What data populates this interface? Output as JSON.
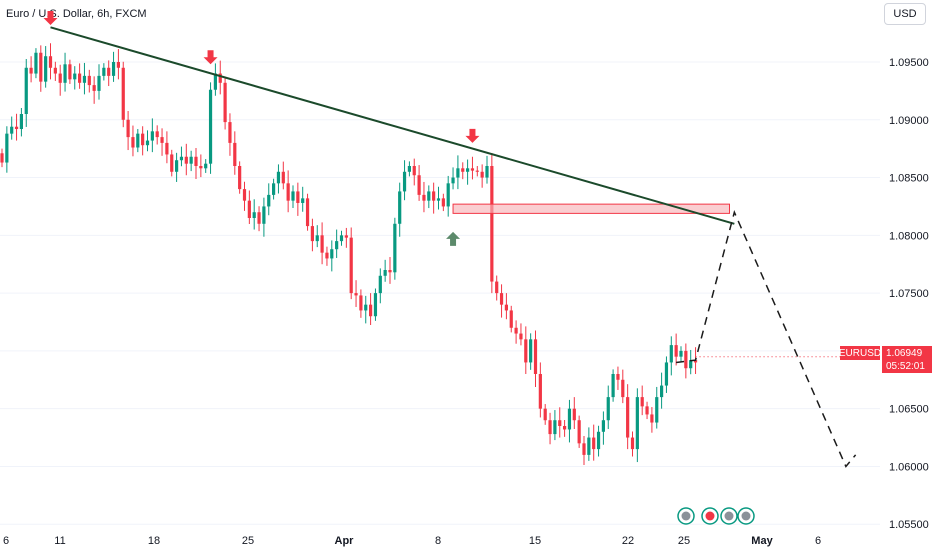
{
  "header": {
    "title": "Euro / U.S. Dollar, 6h, FXCM",
    "currency": "USD"
  },
  "price_tag": {
    "symbol": "EURUSD",
    "price": "1.06949",
    "countdown": "05:52:01"
  },
  "chart_data": {
    "type": "candlestick",
    "title": "Euro / U.S. Dollar, 6h, FXCM",
    "x_ticks": [
      "6",
      "11",
      "18",
      "25",
      "Apr",
      "8",
      "15",
      "22",
      "25",
      "May",
      "6"
    ],
    "y_ticks": [
      "1.09500",
      "1.09000",
      "1.08500",
      "1.08000",
      "1.07500",
      "1.07000",
      "1.06500",
      "1.06000",
      "1.05500"
    ],
    "last_price": 1.06949,
    "ylim": [
      1.0545,
      1.0995
    ],
    "colors": {
      "up": "#089981",
      "down": "#f23645",
      "trendline": "#1b4a2b",
      "zone_fill": "#f7b3b9",
      "zone_stroke": "#f23645",
      "arrow_down": "#f23645",
      "arrow_up": "#5c8a6b",
      "projection": "#1b1b1b"
    },
    "candle_closes": [
      1.0863,
      1.0888,
      1.0894,
      1.0892,
      1.0905,
      1.0945,
      1.094,
      1.0958,
      1.0933,
      1.0955,
      1.0945,
      1.094,
      1.0932,
      1.0948,
      1.0935,
      1.094,
      1.0932,
      1.0938,
      1.093,
      1.0925,
      1.0938,
      1.0945,
      1.0938,
      1.095,
      1.0945,
      1.09,
      1.0885,
      1.0876,
      1.0888,
      1.0878,
      1.0882,
      1.089,
      1.0885,
      1.088,
      1.087,
      1.0855,
      1.0865,
      1.0868,
      1.0862,
      1.0868,
      1.086,
      1.0858,
      1.0862,
      1.0926,
      1.094,
      1.0932,
      1.0898,
      1.088,
      1.086,
      1.084,
      1.083,
      1.0815,
      1.082,
      1.081,
      1.0825,
      1.0835,
      1.0845,
      1.0855,
      1.0845,
      1.083,
      1.0838,
      1.0828,
      1.0832,
      1.0808,
      1.0795,
      1.08,
      1.0785,
      1.078,
      1.0788,
      1.0795,
      1.08,
      1.0798,
      1.075,
      1.0748,
      1.0735,
      1.074,
      1.073,
      1.075,
      1.0765,
      1.077,
      1.0768,
      1.081,
      1.0838,
      1.0855,
      1.086,
      1.0852,
      1.0835,
      1.083,
      1.0838,
      1.083,
      1.0832,
      1.0825,
      1.0845,
      1.085,
      1.0858,
      1.0855,
      1.0858,
      1.0856,
      1.0855,
      1.085,
      1.086,
      1.076,
      1.075,
      1.074,
      1.0735,
      1.072,
      1.0715,
      1.071,
      1.069,
      1.071,
      1.068,
      1.065,
      1.064,
      1.0628,
      1.064,
      1.0635,
      1.0632,
      1.065,
      1.064,
      1.062,
      1.061,
      1.0625,
      1.0615,
      1.063,
      1.064,
      1.066,
      1.068,
      1.0675,
      1.066,
      1.0625,
      1.0615,
      1.066,
      1.0652,
      1.0645,
      1.0638,
      1.066,
      1.067,
      1.069,
      1.0705,
      1.0695,
      1.07,
      1.0685,
      1.0692,
      1.069
    ],
    "trendline": {
      "from": [
        10,
        1.098
      ],
      "to": [
        151,
        1.081
      ]
    },
    "zone": {
      "from_index": 93,
      "to_index": 150,
      "top": 1.0827,
      "bottom": 1.0819
    },
    "arrows": [
      {
        "index": 10,
        "price": 1.0982,
        "direction": "down"
      },
      {
        "index": 43,
        "price": 1.0948,
        "direction": "down"
      },
      {
        "index": 97,
        "price": 1.088,
        "direction": "down"
      },
      {
        "index": 93,
        "price": 1.0803,
        "direction": "up"
      }
    ],
    "projection": [
      [
        139,
        1.069
      ],
      [
        143,
        1.0692
      ],
      [
        151,
        1.082
      ],
      [
        174,
        1.06
      ],
      [
        176,
        1.061
      ]
    ]
  }
}
